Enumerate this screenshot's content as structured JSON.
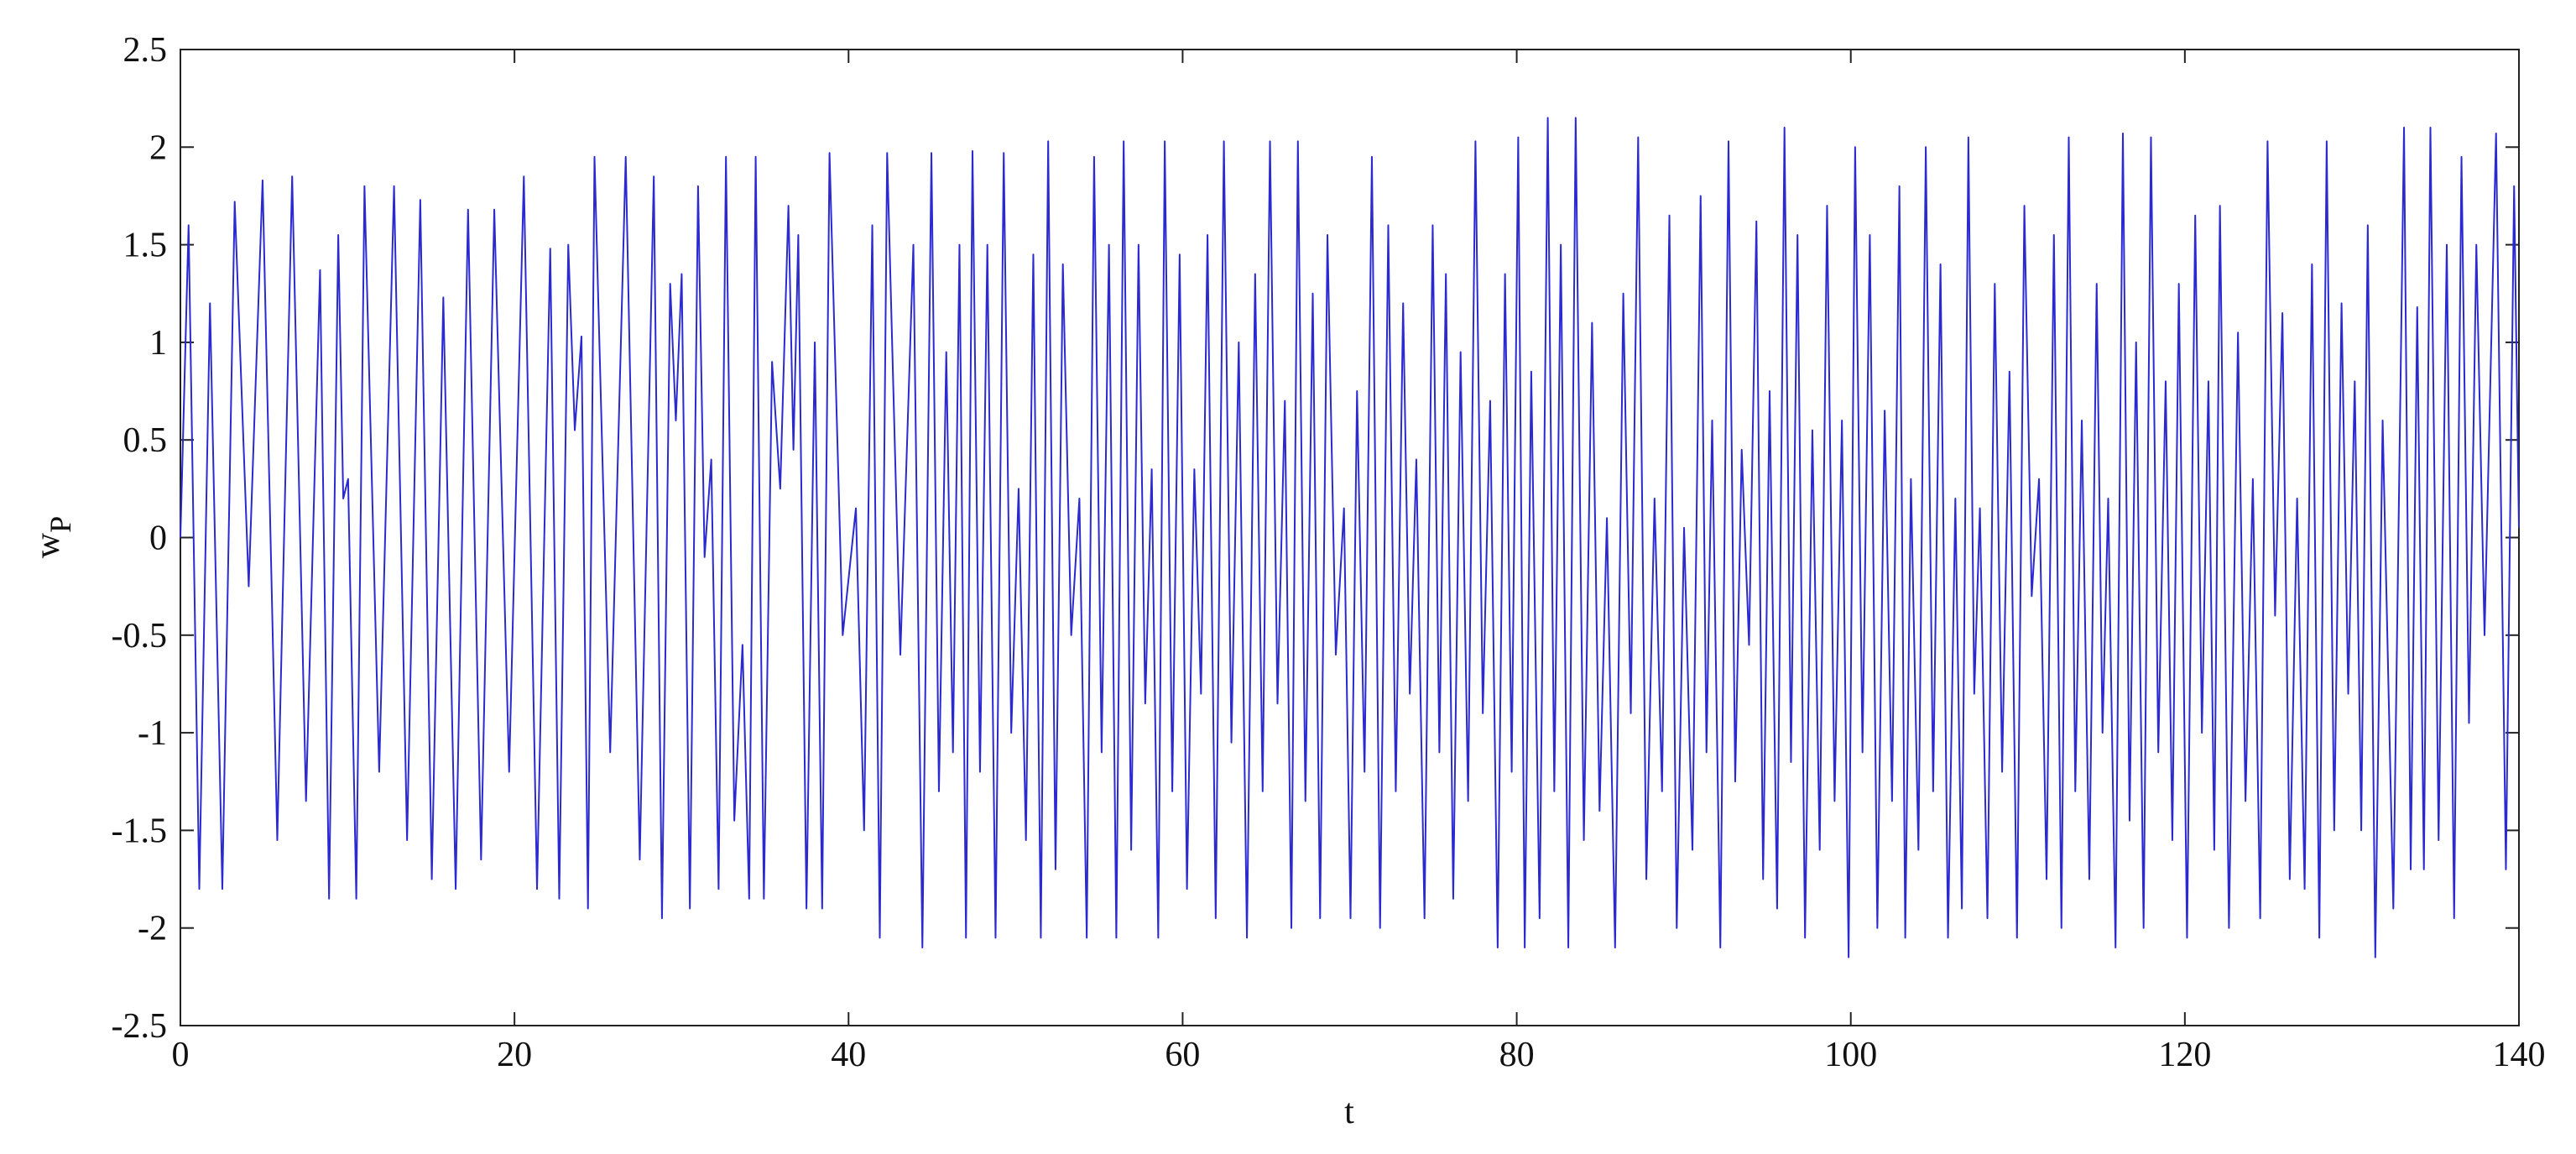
{
  "chart_data": {
    "type": "line",
    "xlabel": "t",
    "ylabel": "w",
    "ylabel_sub": "P",
    "xlim": [
      0,
      140
    ],
    "xticks": [
      0,
      20,
      40,
      60,
      80,
      100,
      120,
      140
    ],
    "ylim": [
      -2.5,
      2.5
    ],
    "yticks": [
      -2.5,
      -2,
      -1.5,
      -1,
      -0.5,
      0,
      0.5,
      1,
      1.5,
      2,
      2.5
    ],
    "grid": false,
    "series": [
      {
        "color": "#2a2ad0",
        "x": [
          0,
          0.49,
          1.13,
          1.77,
          2.51,
          3.25,
          4.09,
          4.92,
          5.8,
          6.69,
          7.52,
          8.36,
          8.9,
          9.45,
          9.75,
          10.04,
          10.53,
          11.02,
          11.9,
          12.79,
          13.57,
          14.36,
          15.05,
          15.74,
          16.48,
          17.22,
          18,
          18.79,
          19.68,
          20.56,
          21.35,
          22.14,
          22.68,
          23.22,
          23.61,
          24.01,
          24.4,
          24.79,
          25.73,
          26.66,
          27.5,
          28.34,
          28.83,
          29.32,
          29.66,
          30.01,
          30.5,
          30.99,
          31.38,
          31.78,
          32.22,
          32.66,
          33.16,
          33.65,
          34.05,
          34.44,
          34.93,
          35.42,
          35.91,
          36.4,
          36.7,
          36.99,
          37.48,
          37.98,
          38.42,
          38.86,
          39.65,
          40.44,
          40.93,
          41.42,
          41.87,
          42.31,
          43.1,
          43.88,
          44.42,
          44.96,
          45.41,
          45.85,
          46.25,
          46.64,
          47.03,
          47.42,
          47.87,
          48.31,
          48.8,
          49.29,
          49.74,
          50.18,
          50.62,
          51.06,
          51.51,
          51.95,
          52.39,
          52.83,
          53.33,
          53.82,
          54.26,
          54.7,
          55.15,
          55.59,
          56.03,
          56.47,
          56.92,
          57.36,
          57.76,
          58.15,
          58.54,
          58.93,
          59.38,
          59.82,
          60.26,
          60.7,
          61.1,
          61.49,
          61.98,
          62.47,
          62.92,
          63.36,
          63.85,
          64.34,
          64.79,
          65.23,
          65.68,
          66.12,
          66.51,
          66.9,
          67.35,
          67.79,
          68.23,
          68.67,
          69.17,
          69.66,
          70.05,
          70.44,
          70.89,
          71.33,
          71.82,
          72.31,
          72.76,
          73.2,
          73.6,
          73.99,
          74.48,
          74.97,
          75.37,
          75.76,
          76.2,
          76.64,
          77.09,
          77.53,
          77.97,
          78.41,
          78.86,
          79.3,
          79.7,
          80.09,
          80.48,
          80.87,
          81.37,
          81.86,
          82.25,
          82.64,
          83.09,
          83.53,
          84.02,
          84.51,
          84.96,
          85.4,
          85.89,
          86.38,
          86.83,
          87.27,
          87.76,
          88.25,
          88.7,
          89.14,
          89.58,
          90.02,
          90.52,
          91.01,
          91.36,
          91.7,
          92.19,
          92.68,
          93.08,
          93.47,
          93.91,
          94.35,
          94.75,
          95.14,
          95.59,
          96.03,
          96.42,
          96.81,
          97.26,
          97.7,
          98.14,
          98.58,
          99.03,
          99.47,
          99.87,
          100.26,
          100.7,
          101.14,
          101.59,
          102.03,
          102.47,
          102.91,
          103.26,
          103.6,
          104.05,
          104.49,
          104.93,
          105.37,
          105.82,
          106.26,
          106.65,
          107.04,
          107.39,
          107.73,
          108.18,
          108.62,
          109.06,
          109.5,
          109.95,
          110.39,
          110.83,
          111.27,
          111.72,
          112.16,
          112.61,
          113.05,
          113.44,
          113.83,
          114.28,
          114.72,
          115.07,
          115.41,
          115.85,
          116.29,
          116.69,
          117.08,
          117.53,
          117.97,
          118.41,
          118.85,
          119.25,
          119.64,
          120.13,
          120.62,
          121.02,
          121.41,
          121.76,
          122.1,
          122.64,
          123.18,
          123.63,
          124.07,
          124.51,
          124.95,
          125.4,
          125.84,
          126.28,
          126.72,
          127.17,
          127.61,
          128.05,
          128.49,
          128.94,
          129.38,
          129.78,
          130.17,
          130.56,
          130.95,
          131.4,
          131.84,
          132.48,
          133.12,
          133.52,
          133.91,
          134.31,
          134.7,
          135.19,
          135.68,
          136.12,
          136.56,
          137.01,
          137.45,
          137.94,
          138.63,
          139.22,
          139.71,
          140
        ],
        "values": [
          0,
          1.6,
          -1.8,
          1.2,
          -1.8,
          1.72,
          -0.25,
          1.83,
          -1.55,
          1.85,
          -1.35,
          1.37,
          -1.85,
          1.55,
          0.2,
          0.3,
          -1.85,
          1.8,
          -1.2,
          1.8,
          -1.55,
          1.73,
          -1.75,
          1.23,
          -1.8,
          1.68,
          -1.65,
          1.68,
          -1.2,
          1.85,
          -1.8,
          1.48,
          -1.85,
          1.5,
          0.55,
          1.03,
          -1.9,
          1.95,
          -1.1,
          1.95,
          -1.65,
          1.85,
          -1.95,
          1.3,
          0.6,
          1.35,
          -1.9,
          1.8,
          -0.1,
          0.4,
          -1.8,
          1.95,
          -1.45,
          -0.55,
          -1.85,
          1.95,
          -1.85,
          0.9,
          0.25,
          1.7,
          0.45,
          1.55,
          -1.9,
          1.0,
          -1.9,
          1.97,
          -0.5,
          0.15,
          -1.5,
          1.6,
          -2.05,
          1.97,
          -0.6,
          1.5,
          -2.1,
          1.97,
          -1.3,
          0.95,
          -1.1,
          1.5,
          -2.05,
          1.98,
          -1.2,
          1.5,
          -2.05,
          1.97,
          -1.0,
          0.25,
          -1.55,
          1.45,
          -2.05,
          2.03,
          -1.7,
          1.4,
          -0.5,
          0.2,
          -2.05,
          1.95,
          -1.1,
          1.5,
          -2.05,
          2.03,
          -1.6,
          1.5,
          -0.85,
          0.35,
          -2.05,
          2.03,
          -1.3,
          1.45,
          -1.8,
          0.35,
          -0.8,
          1.55,
          -1.95,
          2.03,
          -1.05,
          1.0,
          -2.05,
          1.35,
          -1.3,
          2.03,
          -0.85,
          0.7,
          -2.0,
          2.03,
          -1.35,
          1.25,
          -1.95,
          1.55,
          -0.6,
          0.15,
          -1.95,
          0.75,
          -1.2,
          1.95,
          -2.0,
          1.6,
          -1.3,
          1.2,
          -0.8,
          0.4,
          -1.95,
          1.6,
          -1.1,
          1.35,
          -1.85,
          0.95,
          -1.35,
          2.03,
          -0.9,
          0.7,
          -2.1,
          1.35,
          -1.2,
          2.05,
          -2.1,
          0.85,
          -1.95,
          2.15,
          -1.3,
          1.5,
          -2.1,
          2.15,
          -1.55,
          1.1,
          -1.4,
          0.1,
          -2.1,
          1.25,
          -0.9,
          2.05,
          -1.75,
          0.2,
          -1.3,
          1.65,
          -2.0,
          0.05,
          -1.6,
          1.75,
          -1.1,
          0.6,
          -2.1,
          2.03,
          -1.25,
          0.45,
          -0.55,
          1.62,
          -1.75,
          0.75,
          -1.9,
          2.1,
          -1.15,
          1.55,
          -2.05,
          0.55,
          -1.6,
          1.7,
          -1.35,
          0.6,
          -2.15,
          2.0,
          -1.1,
          1.55,
          -2.0,
          0.65,
          -1.35,
          1.8,
          -2.05,
          0.3,
          -1.6,
          2.0,
          -1.3,
          1.4,
          -2.05,
          0.2,
          -1.9,
          2.05,
          -0.8,
          0.15,
          -1.95,
          1.3,
          -1.2,
          0.85,
          -2.05,
          1.7,
          -0.3,
          0.3,
          -1.75,
          1.55,
          -2.0,
          2.05,
          -1.3,
          0.6,
          -1.75,
          1.3,
          -1.0,
          0.2,
          -2.1,
          2.07,
          -1.45,
          1.0,
          -2.0,
          2.05,
          -1.1,
          0.8,
          -1.55,
          1.3,
          -2.05,
          1.65,
          -1.0,
          0.8,
          -1.6,
          1.7,
          -2.0,
          1.05,
          -1.35,
          0.3,
          -1.95,
          2.03,
          -0.4,
          1.15,
          -1.75,
          0.2,
          -1.8,
          1.4,
          -2.05,
          2.03,
          -1.5,
          1.2,
          -0.8,
          0.8,
          -1.5,
          1.6,
          -2.15,
          0.6,
          -1.9,
          2.1,
          -1.7,
          1.18,
          -1.7,
          2.1,
          -1.55,
          1.5,
          -1.95,
          1.95,
          -0.95,
          1.5,
          -0.5,
          2.07,
          -1.7,
          1.8,
          0.05
        ]
      }
    ]
  }
}
